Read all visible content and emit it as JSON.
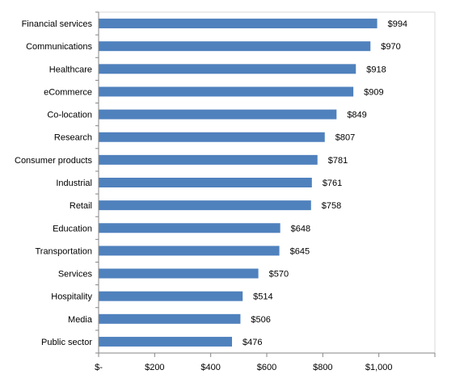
{
  "chart_data": {
    "type": "bar",
    "orientation": "horizontal",
    "categories": [
      "Financial services",
      "Communications",
      "Healthcare",
      "eCommerce",
      "Co-location",
      "Research",
      "Consumer products",
      "Industrial",
      "Retail",
      "Education",
      "Transportation",
      "Services",
      "Hospitality",
      "Media",
      "Public sector"
    ],
    "values": [
      994,
      970,
      918,
      909,
      849,
      807,
      781,
      761,
      758,
      648,
      645,
      570,
      514,
      506,
      476
    ],
    "value_labels": [
      "$994",
      "$970",
      "$918",
      "$909",
      "$849",
      "$807",
      "$781",
      "$761",
      "$758",
      "$648",
      "$645",
      "$570",
      "$514",
      "$506",
      "$476"
    ],
    "x_ticks": [
      0,
      200,
      400,
      600,
      800,
      1000,
      1200
    ],
    "x_tick_labels": [
      "$-",
      "$200",
      "$400",
      "$600",
      "$800",
      "$1,000",
      ""
    ],
    "xlim": [
      0,
      1200
    ],
    "title": "",
    "xlabel": "",
    "ylabel": "",
    "grid": false,
    "legend": "none",
    "bar_color": "#4f81bd"
  }
}
